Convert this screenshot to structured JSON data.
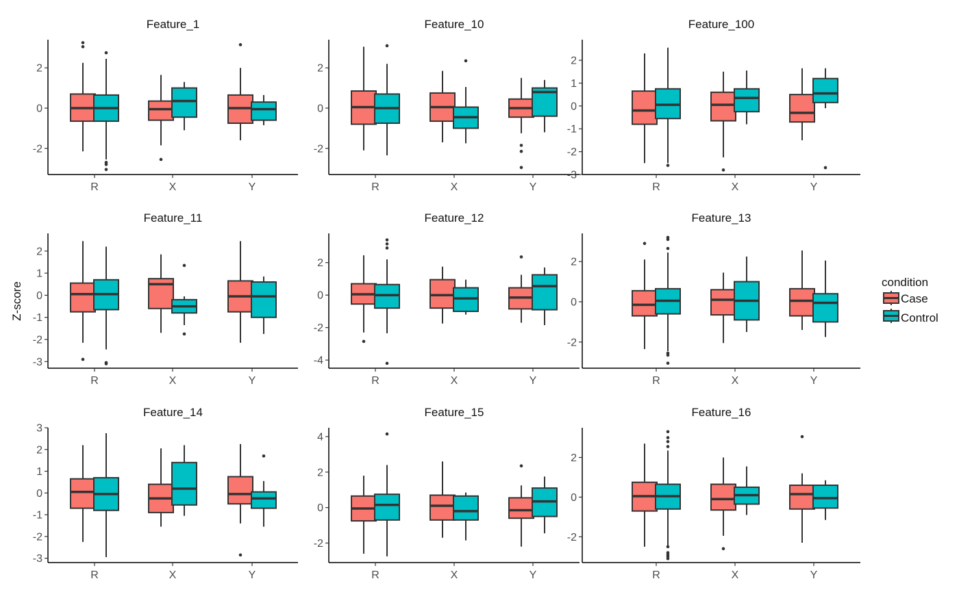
{
  "colors": {
    "Case": "#F8766D",
    "Control": "#00BFC4",
    "line": "#333333"
  },
  "chart_data": {
    "type": "boxplot",
    "ylabel": "Z-score",
    "categories": [
      "R",
      "X",
      "Y"
    ],
    "legend": {
      "title": "condition",
      "position": "right",
      "entries": [
        "Case",
        "Control"
      ]
    },
    "panels": [
      {
        "title": "Feature_1",
        "ylim": [
          -3.3,
          3.4
        ],
        "yticks": [
          -2,
          0,
          2
        ],
        "groups": [
          {
            "cat": "R",
            "cond": "Case",
            "whislo": -2.15,
            "q1": -0.65,
            "med": 0.0,
            "q3": 0.7,
            "whishi": 2.25,
            "outliers": [
              3.25,
              3.05
            ]
          },
          {
            "cat": "R",
            "cond": "Control",
            "whislo": -2.55,
            "q1": -0.65,
            "med": 0.0,
            "q3": 0.65,
            "whishi": 2.45,
            "outliers": [
              2.75,
              -2.7,
              -2.8,
              -3.05
            ]
          },
          {
            "cat": "X",
            "cond": "Case",
            "whislo": -1.85,
            "q1": -0.6,
            "med": -0.05,
            "q3": 0.35,
            "whishi": 1.65,
            "outliers": [
              -2.55
            ]
          },
          {
            "cat": "X",
            "cond": "Control",
            "whislo": -1.1,
            "q1": -0.45,
            "med": 0.35,
            "q3": 1.0,
            "whishi": 1.3,
            "outliers": []
          },
          {
            "cat": "Y",
            "cond": "Case",
            "whislo": -1.6,
            "q1": -0.75,
            "med": 0.0,
            "q3": 0.65,
            "whishi": 2.0,
            "outliers": [
              3.15
            ]
          },
          {
            "cat": "Y",
            "cond": "Control",
            "whislo": -0.85,
            "q1": -0.6,
            "med": -0.05,
            "q3": 0.3,
            "whishi": 0.65,
            "outliers": []
          }
        ]
      },
      {
        "title": "Feature_10",
        "ylim": [
          -3.3,
          3.4
        ],
        "yticks": [
          -2,
          0,
          2
        ],
        "groups": [
          {
            "cat": "R",
            "cond": "Case",
            "whislo": -2.1,
            "q1": -0.8,
            "med": 0.05,
            "q3": 0.85,
            "whishi": 3.05,
            "outliers": []
          },
          {
            "cat": "R",
            "cond": "Control",
            "whislo": -2.35,
            "q1": -0.75,
            "med": 0.0,
            "q3": 0.7,
            "whishi": 2.2,
            "outliers": [
              3.1
            ]
          },
          {
            "cat": "X",
            "cond": "Case",
            "whislo": -1.7,
            "q1": -0.65,
            "med": 0.05,
            "q3": 0.75,
            "whishi": 1.85,
            "outliers": []
          },
          {
            "cat": "X",
            "cond": "Control",
            "whislo": -1.75,
            "q1": -1.0,
            "med": -0.45,
            "q3": 0.05,
            "whishi": 1.05,
            "outliers": [
              2.35
            ]
          },
          {
            "cat": "Y",
            "cond": "Case",
            "whislo": -1.25,
            "q1": -0.45,
            "med": 0.0,
            "q3": 0.45,
            "whishi": 1.5,
            "outliers": [
              -1.85,
              -2.15,
              -2.95
            ]
          },
          {
            "cat": "Y",
            "cond": "Control",
            "whislo": -1.2,
            "q1": -0.4,
            "med": 0.8,
            "q3": 1.0,
            "whishi": 1.4,
            "outliers": []
          }
        ]
      },
      {
        "title": "Feature_100",
        "ylim": [
          -3.0,
          2.9
        ],
        "yticks": [
          -3,
          -2,
          -1,
          0,
          1,
          2
        ],
        "groups": [
          {
            "cat": "R",
            "cond": "Case",
            "whislo": -2.5,
            "q1": -0.8,
            "med": -0.2,
            "q3": 0.65,
            "whishi": 2.3,
            "outliers": []
          },
          {
            "cat": "R",
            "cond": "Control",
            "whislo": -2.5,
            "q1": -0.55,
            "med": 0.05,
            "q3": 0.75,
            "whishi": 2.55,
            "outliers": [
              -2.6
            ]
          },
          {
            "cat": "X",
            "cond": "Case",
            "whislo": -2.25,
            "q1": -0.65,
            "med": 0.05,
            "q3": 0.6,
            "whishi": 1.5,
            "outliers": [
              -2.8
            ]
          },
          {
            "cat": "X",
            "cond": "Control",
            "whislo": -0.8,
            "q1": -0.25,
            "med": 0.35,
            "q3": 0.75,
            "whishi": 1.55,
            "outliers": []
          },
          {
            "cat": "Y",
            "cond": "Case",
            "whislo": -1.5,
            "q1": -0.7,
            "med": -0.3,
            "q3": 0.5,
            "whishi": 1.65,
            "outliers": []
          },
          {
            "cat": "Y",
            "cond": "Control",
            "whislo": -0.1,
            "q1": 0.15,
            "med": 0.55,
            "q3": 1.2,
            "whishi": 1.65,
            "outliers": [
              -2.7
            ]
          }
        ]
      },
      {
        "title": "Feature_11",
        "ylim": [
          -3.3,
          2.8
        ],
        "yticks": [
          -3,
          -2,
          -1,
          0,
          1,
          2
        ],
        "groups": [
          {
            "cat": "R",
            "cond": "Case",
            "whislo": -2.15,
            "q1": -0.75,
            "med": 0.05,
            "q3": 0.55,
            "whishi": 2.45,
            "outliers": [
              -2.9
            ]
          },
          {
            "cat": "R",
            "cond": "Control",
            "whislo": -2.45,
            "q1": -0.65,
            "med": 0.05,
            "q3": 0.7,
            "whishi": 2.2,
            "outliers": [
              -3.05,
              -3.1
            ]
          },
          {
            "cat": "X",
            "cond": "Case",
            "whislo": -1.7,
            "q1": -0.6,
            "med": 0.5,
            "q3": 0.75,
            "whishi": 1.85,
            "outliers": []
          },
          {
            "cat": "X",
            "cond": "Control",
            "whislo": -1.35,
            "q1": -0.8,
            "med": -0.5,
            "q3": -0.2,
            "whishi": -0.05,
            "outliers": [
              1.35,
              -1.75
            ]
          },
          {
            "cat": "Y",
            "cond": "Case",
            "whislo": -2.15,
            "q1": -0.75,
            "med": -0.05,
            "q3": 0.65,
            "whishi": 2.45,
            "outliers": []
          },
          {
            "cat": "Y",
            "cond": "Control",
            "whislo": -1.75,
            "q1": -1.0,
            "med": -0.05,
            "q3": 0.6,
            "whishi": 0.85,
            "outliers": []
          }
        ]
      },
      {
        "title": "Feature_12",
        "ylim": [
          -4.5,
          3.8
        ],
        "yticks": [
          -4,
          -2,
          0,
          2
        ],
        "groups": [
          {
            "cat": "R",
            "cond": "Case",
            "whislo": -2.3,
            "q1": -0.55,
            "med": 0.05,
            "q3": 0.7,
            "whishi": 2.45,
            "outliers": [
              -2.85
            ]
          },
          {
            "cat": "R",
            "cond": "Control",
            "whislo": -2.35,
            "q1": -0.8,
            "med": 0.0,
            "q3": 0.65,
            "whishi": 2.2,
            "outliers": [
              3.4,
              3.15,
              2.9,
              -4.2
            ]
          },
          {
            "cat": "X",
            "cond": "Case",
            "whislo": -1.75,
            "q1": -0.8,
            "med": 0.0,
            "q3": 0.95,
            "whishi": 1.75,
            "outliers": []
          },
          {
            "cat": "X",
            "cond": "Control",
            "whislo": -1.2,
            "q1": -1.0,
            "med": -0.2,
            "q3": 0.45,
            "whishi": 0.95,
            "outliers": []
          },
          {
            "cat": "Y",
            "cond": "Case",
            "whislo": -1.7,
            "q1": -0.85,
            "med": -0.15,
            "q3": 0.45,
            "whishi": 1.25,
            "outliers": [
              2.35
            ]
          },
          {
            "cat": "Y",
            "cond": "Control",
            "whislo": -1.85,
            "q1": -0.9,
            "med": 0.55,
            "q3": 1.25,
            "whishi": 1.7,
            "outliers": []
          }
        ]
      },
      {
        "title": "Feature_13",
        "ylim": [
          -3.3,
          3.4
        ],
        "yticks": [
          -2,
          0,
          2
        ],
        "groups": [
          {
            "cat": "R",
            "cond": "Case",
            "whislo": -2.35,
            "q1": -0.7,
            "med": -0.15,
            "q3": 0.55,
            "whishi": 2.1,
            "outliers": [
              2.9
            ]
          },
          {
            "cat": "R",
            "cond": "Control",
            "whislo": -2.45,
            "q1": -0.6,
            "med": 0.05,
            "q3": 0.65,
            "whishi": 2.45,
            "outliers": [
              3.2,
              3.1,
              2.65,
              -2.55,
              -2.65,
              -3.05
            ]
          },
          {
            "cat": "X",
            "cond": "Case",
            "whislo": -2.05,
            "q1": -0.65,
            "med": 0.1,
            "q3": 0.6,
            "whishi": 1.45,
            "outliers": []
          },
          {
            "cat": "X",
            "cond": "Control",
            "whislo": -1.5,
            "q1": -0.9,
            "med": 0.05,
            "q3": 1.0,
            "whishi": 2.25,
            "outliers": []
          },
          {
            "cat": "Y",
            "cond": "Case",
            "whislo": -1.4,
            "q1": -0.7,
            "med": 0.05,
            "q3": 0.65,
            "whishi": 2.55,
            "outliers": []
          },
          {
            "cat": "Y",
            "cond": "Control",
            "whislo": -1.75,
            "q1": -1.0,
            "med": -0.05,
            "q3": 0.4,
            "whishi": 2.05,
            "outliers": []
          }
        ]
      },
      {
        "title": "Feature_14",
        "ylim": [
          -3.2,
          3.0
        ],
        "yticks": [
          -3,
          -2,
          -1,
          0,
          1,
          2,
          3
        ],
        "groups": [
          {
            "cat": "R",
            "cond": "Case",
            "whislo": -2.25,
            "q1": -0.7,
            "med": 0.05,
            "q3": 0.65,
            "whishi": 2.2,
            "outliers": []
          },
          {
            "cat": "R",
            "cond": "Control",
            "whislo": -2.95,
            "q1": -0.8,
            "med": -0.05,
            "q3": 0.7,
            "whishi": 2.75,
            "outliers": []
          },
          {
            "cat": "X",
            "cond": "Case",
            "whislo": -1.55,
            "q1": -0.9,
            "med": -0.25,
            "q3": 0.4,
            "whishi": 2.05,
            "outliers": []
          },
          {
            "cat": "X",
            "cond": "Control",
            "whislo": -1.05,
            "q1": -0.55,
            "med": 0.2,
            "q3": 1.4,
            "whishi": 2.2,
            "outliers": []
          },
          {
            "cat": "Y",
            "cond": "Case",
            "whislo": -1.4,
            "q1": -0.5,
            "med": -0.05,
            "q3": 0.75,
            "whishi": 2.25,
            "outliers": [
              -2.85
            ]
          },
          {
            "cat": "Y",
            "cond": "Control",
            "whislo": -1.55,
            "q1": -0.7,
            "med": -0.25,
            "q3": 0.05,
            "whishi": 0.55,
            "outliers": [
              1.7
            ]
          }
        ]
      },
      {
        "title": "Feature_15",
        "ylim": [
          -3.1,
          4.5
        ],
        "yticks": [
          -2,
          0,
          2,
          4
        ],
        "groups": [
          {
            "cat": "R",
            "cond": "Case",
            "whislo": -2.6,
            "q1": -0.75,
            "med": -0.05,
            "q3": 0.65,
            "whishi": 1.8,
            "outliers": []
          },
          {
            "cat": "R",
            "cond": "Control",
            "whislo": -2.75,
            "q1": -0.7,
            "med": 0.15,
            "q3": 0.75,
            "whishi": 2.4,
            "outliers": [
              4.15
            ]
          },
          {
            "cat": "X",
            "cond": "Case",
            "whislo": -1.7,
            "q1": -0.7,
            "med": 0.1,
            "q3": 0.7,
            "whishi": 2.6,
            "outliers": []
          },
          {
            "cat": "X",
            "cond": "Control",
            "whislo": -1.85,
            "q1": -0.7,
            "med": -0.2,
            "q3": 0.65,
            "whishi": 0.85,
            "outliers": []
          },
          {
            "cat": "Y",
            "cond": "Case",
            "whislo": -2.2,
            "q1": -0.6,
            "med": -0.15,
            "q3": 0.55,
            "whishi": 1.25,
            "outliers": [
              2.35
            ]
          },
          {
            "cat": "Y",
            "cond": "Control",
            "whislo": -1.45,
            "q1": -0.5,
            "med": 0.35,
            "q3": 1.1,
            "whishi": 1.75,
            "outliers": []
          }
        ]
      },
      {
        "title": "Feature_16",
        "ylim": [
          -3.3,
          3.5
        ],
        "yticks": [
          -2,
          0,
          2
        ],
        "groups": [
          {
            "cat": "R",
            "cond": "Case",
            "whislo": -2.5,
            "q1": -0.7,
            "med": 0.05,
            "q3": 0.75,
            "whishi": 2.7,
            "outliers": []
          },
          {
            "cat": "R",
            "cond": "Control",
            "whislo": -2.45,
            "q1": -0.6,
            "med": 0.05,
            "q3": 0.65,
            "whishi": 2.35,
            "outliers": [
              3.3,
              3.0,
              2.8,
              2.55,
              -2.5,
              -2.8,
              -2.9,
              -3.0,
              -3.1
            ]
          },
          {
            "cat": "X",
            "cond": "Case",
            "whislo": -1.95,
            "q1": -0.65,
            "med": -0.1,
            "q3": 0.65,
            "whishi": 2.0,
            "outliers": [
              -2.6
            ]
          },
          {
            "cat": "X",
            "cond": "Control",
            "whislo": -0.9,
            "q1": -0.35,
            "med": 0.1,
            "q3": 0.5,
            "whishi": 1.55,
            "outliers": []
          },
          {
            "cat": "Y",
            "cond": "Case",
            "whislo": -2.3,
            "q1": -0.6,
            "med": 0.15,
            "q3": 0.6,
            "whishi": 1.2,
            "outliers": [
              3.05
            ]
          },
          {
            "cat": "Y",
            "cond": "Control",
            "whislo": -1.15,
            "q1": -0.55,
            "med": -0.05,
            "q3": 0.6,
            "whishi": 0.85,
            "outliers": []
          }
        ]
      }
    ]
  }
}
